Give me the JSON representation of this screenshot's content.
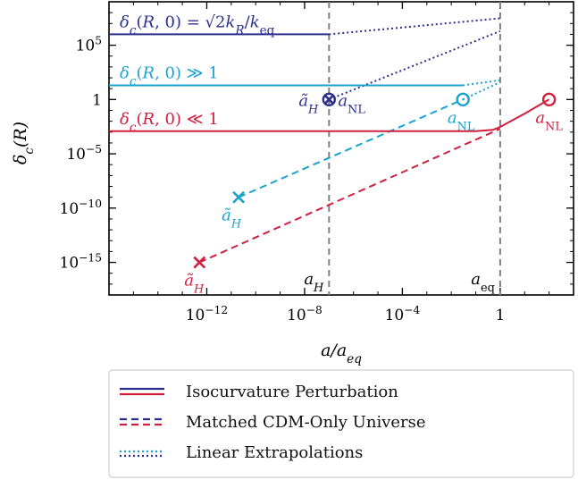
{
  "chart_data": {
    "type": "line",
    "xlabel": "a/a_eq",
    "ylabel": "δ_c(R)",
    "xscale": "log",
    "yscale": "log",
    "xlim": [
      1e-16,
      1000.0
    ],
    "ylim": [
      1e-18,
      1000000000.0
    ],
    "grid": false,
    "legend_position": "below",
    "x_ticks": [
      {
        "value": 1e-12,
        "mant": "10",
        "exp": "−12"
      },
      {
        "value": 1e-08,
        "mant": "10",
        "exp": "−8"
      },
      {
        "value": 0.0001,
        "mant": "10",
        "exp": "−4"
      },
      {
        "value": 1,
        "mant": "1",
        "exp": ""
      }
    ],
    "y_ticks": [
      {
        "value": 100000.0,
        "mant": "10",
        "exp": "5"
      },
      {
        "value": 1,
        "mant": "1",
        "exp": ""
      },
      {
        "value": 1e-05,
        "mant": "10",
        "exp": "−5"
      },
      {
        "value": 1e-10,
        "mant": "10",
        "exp": "−10"
      },
      {
        "value": 1e-15,
        "mant": "10",
        "exp": "−15"
      }
    ],
    "vlines": [
      {
        "x": 1e-07,
        "label": "a_H"
      },
      {
        "x": 1,
        "label": "a_eq"
      }
    ],
    "colors": {
      "dark": "#2b2f8e",
      "cyan": "#1aa3cf",
      "red": "#d1203f",
      "vline": "#808080"
    },
    "series": [
      {
        "key": "dark_iso",
        "color": "dark",
        "style": "solid",
        "points": [
          [
            1e-16,
            1000000.0
          ],
          [
            1e-07,
            1000000.0
          ]
        ]
      },
      {
        "key": "dark_lin",
        "color": "dark",
        "style": "dotted",
        "points": [
          [
            1e-07,
            1000000.0
          ],
          [
            1,
            30000000.0
          ]
        ]
      },
      {
        "key": "dark_lin2",
        "color": "dark",
        "style": "dotted",
        "points": [
          [
            1e-07,
            1
          ],
          [
            1,
            2000000.0
          ]
        ]
      },
      {
        "key": "cyan_iso",
        "color": "cyan",
        "style": "solid",
        "points": [
          [
            1e-16,
            20
          ],
          [
            0.03,
            20
          ]
        ]
      },
      {
        "key": "cyan_lin",
        "color": "cyan",
        "style": "dotted",
        "points": [
          [
            0.03,
            20
          ],
          [
            1,
            60
          ]
        ]
      },
      {
        "key": "cyan_cdm",
        "color": "cyan",
        "style": "dashed",
        "points": [
          [
            2e-11,
            1e-09
          ],
          [
            0.03,
            1
          ]
        ]
      },
      {
        "key": "cyan_lin2",
        "color": "cyan",
        "style": "dotted",
        "points": [
          [
            0.03,
            1
          ],
          [
            1,
            40
          ]
        ]
      },
      {
        "key": "red_iso",
        "color": "red",
        "style": "solid",
        "points": [
          [
            1e-16,
            0.0012
          ],
          [
            0.1,
            0.0012
          ],
          [
            0.5,
            0.0016
          ],
          [
            1,
            0.003
          ],
          [
            10,
            0.05
          ],
          [
            100,
            1
          ]
        ]
      },
      {
        "key": "red_cdm",
        "color": "red",
        "style": "dashed",
        "points": [
          [
            5e-13,
            1e-15
          ],
          [
            1,
            0.002
          ]
        ]
      }
    ],
    "markers": [
      {
        "key": "dark_aH",
        "symbol": "circle-x",
        "color": "dark",
        "x": 1e-07,
        "y": 1
      },
      {
        "key": "cyan_aH",
        "symbol": "x",
        "color": "cyan",
        "x": 2e-11,
        "y": 1e-09
      },
      {
        "key": "cyan_aNL",
        "symbol": "open-circle",
        "color": "cyan",
        "x": 0.03,
        "y": 1
      },
      {
        "key": "red_aH",
        "symbol": "x",
        "color": "red",
        "x": 5e-13,
        "y": 1e-15
      },
      {
        "key": "red_aNL",
        "symbol": "open-circle",
        "color": "red",
        "x": 100,
        "y": 1
      }
    ],
    "annotations": {
      "dark_cond": "δc(R, 0) = √2 kR/keq",
      "cyan_cond": "δc(R, 0) ≫ 1",
      "red_cond": "δc(R, 0) ≪ 1",
      "aH_tilde": "ãH",
      "aNL": "aNL",
      "aH": "aH",
      "aeq": "aeq"
    },
    "legend": [
      {
        "label": "Isocurvature Perturbation",
        "style": "solid"
      },
      {
        "label": "Matched CDM-Only Universe",
        "style": "dashed"
      },
      {
        "label": "Linear Extrapolations",
        "style": "dotted"
      }
    ]
  }
}
